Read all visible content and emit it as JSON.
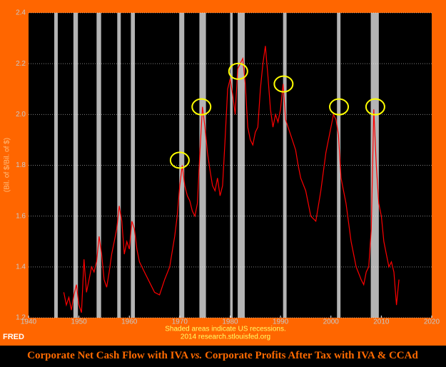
{
  "chart_data": {
    "type": "line",
    "title_parts": [
      "Corporate Net Cash Flow with IVA",
      "vs.",
      "Corporate Profits After Tax with IVA & CCAd"
    ],
    "y_label": "(Bil. of $/Bil. of $)",
    "notes": [
      "Shaded areas indicate US recessions.",
      "2014 research.stlouisfed.org"
    ],
    "logo": "FRED",
    "color": "#ff0000",
    "xlim": [
      1940,
      2020
    ],
    "xticks": [
      1940,
      1950,
      1960,
      1970,
      1980,
      1990,
      2000,
      2010,
      2020
    ],
    "ylim": [
      1.2,
      2.4
    ],
    "yticks": [
      1.2,
      1.4,
      1.6,
      1.8,
      {
        "value": 2,
        "label": "2.0"
      },
      2.2,
      2.4
    ],
    "grid": true,
    "recessions": [
      [
        1945.1,
        1945.8
      ],
      [
        1948.9,
        1949.8
      ],
      [
        1953.5,
        1954.4
      ],
      [
        1957.6,
        1958.3
      ],
      [
        1960.3,
        1961.1
      ],
      [
        1969.9,
        1970.9
      ],
      [
        1973.9,
        1975.2
      ],
      [
        1980.0,
        1980.5
      ],
      [
        1981.5,
        1982.9
      ],
      [
        1990.5,
        1991.2
      ],
      [
        2001.2,
        2001.9
      ],
      [
        2007.9,
        2009.5
      ]
    ],
    "recession_color": "#b4b4b4",
    "highlights": [
      {
        "x": 1970,
        "y": 1.82
      },
      {
        "x": 1974.3,
        "y": 2.03
      },
      {
        "x": 1981.6,
        "y": 2.17
      },
      {
        "x": 1990.6,
        "y": 2.12
      },
      {
        "x": 2001.6,
        "y": 2.03
      },
      {
        "x": 2008.8,
        "y": 2.03
      }
    ],
    "highlight_color": "#ffff00",
    "x": [
      1947,
      1947.5,
      1948,
      1948.5,
      1949,
      1949.5,
      1950,
      1950.5,
      1951,
      1951.5,
      1952,
      1952.5,
      1953,
      1953.5,
      1954,
      1954.5,
      1955,
      1955.5,
      1956,
      1956.5,
      1957,
      1957.5,
      1958,
      1958.5,
      1959,
      1959.5,
      1960,
      1960.5,
      1961,
      1961.5,
      1962,
      1963,
      1964,
      1965,
      1966,
      1967,
      1968,
      1969,
      1969.5,
      1970,
      1970.5,
      1971,
      1971.5,
      1972,
      1972.5,
      1973,
      1973.5,
      1974,
      1974.5,
      1975,
      1975.5,
      1976,
      1976.5,
      1977,
      1977.5,
      1978,
      1978.5,
      1979,
      1979.5,
      1980,
      1980.5,
      1981,
      1981.5,
      1982,
      1982.5,
      1983,
      1983.5,
      1984,
      1984.5,
      1985,
      1985.5,
      1986,
      1986.5,
      1987,
      1987.5,
      1988,
      1988.5,
      1989,
      1989.5,
      1990,
      1990.5,
      1991,
      1991.5,
      1992,
      1993,
      1993.5,
      1994,
      1995,
      1995.5,
      1996,
      1997,
      1998,
      1999,
      2000,
      2000.5,
      2001,
      2001.5,
      2002,
      2003,
      2004,
      2005,
      2006,
      2006.5,
      2007,
      2007.5,
      2008,
      2008.5,
      2009,
      2009.5,
      2010,
      2010.5,
      2011,
      2011.5,
      2012,
      2012.5,
      2013,
      2013.5
    ],
    "values": [
      1.3,
      1.25,
      1.28,
      1.23,
      1.29,
      1.33,
      1.25,
      1.22,
      1.43,
      1.3,
      1.35,
      1.4,
      1.38,
      1.42,
      1.52,
      1.45,
      1.35,
      1.32,
      1.38,
      1.45,
      1.5,
      1.55,
      1.64,
      1.58,
      1.45,
      1.5,
      1.47,
      1.58,
      1.55,
      1.47,
      1.42,
      1.38,
      1.34,
      1.3,
      1.29,
      1.35,
      1.4,
      1.52,
      1.6,
      1.72,
      1.8,
      1.72,
      1.68,
      1.66,
      1.62,
      1.6,
      1.65,
      1.85,
      2.03,
      1.95,
      1.85,
      1.78,
      1.72,
      1.7,
      1.75,
      1.68,
      1.72,
      1.9,
      2.1,
      2.14,
      2.08,
      2.0,
      2.18,
      2.2,
      2.22,
      2.12,
      1.95,
      1.9,
      1.88,
      1.93,
      1.95,
      2.1,
      2.2,
      2.27,
      2.15,
      2.02,
      1.95,
      2.0,
      1.97,
      2.02,
      2.12,
      1.98,
      1.95,
      1.92,
      1.86,
      1.8,
      1.75,
      1.7,
      1.65,
      1.6,
      1.58,
      1.7,
      1.85,
      1.95,
      2.0,
      1.98,
      1.92,
      1.75,
      1.65,
      1.5,
      1.4,
      1.35,
      1.33,
      1.38,
      1.4,
      1.55,
      2.02,
      1.8,
      1.65,
      1.6,
      1.5,
      1.45,
      1.4,
      1.42,
      1.38,
      1.25,
      1.35
    ]
  }
}
